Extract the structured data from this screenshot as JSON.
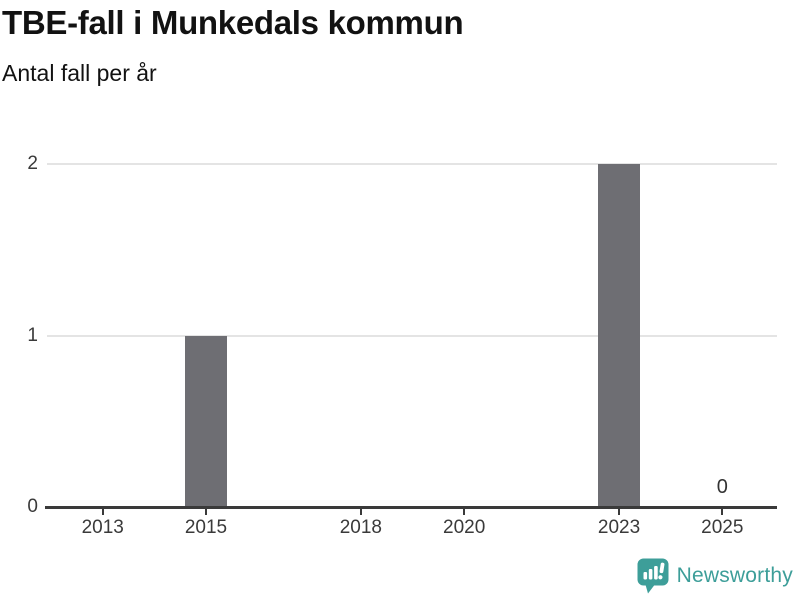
{
  "header": {
    "title": "TBE-fall i Munkedals kommun",
    "subtitle": "Antal fall per år"
  },
  "chart_data": {
    "type": "bar",
    "title": "TBE-fall i Munkedals kommun",
    "subtitle": "Antal fall per år",
    "xlim": [
      2011.92,
      2026.06
    ],
    "ylim": [
      0,
      2
    ],
    "grid": "horizontal",
    "y_gridlines": [
      1,
      2
    ],
    "y_ticks": [
      {
        "value": 0,
        "label": "0"
      },
      {
        "value": 1,
        "label": "1"
      },
      {
        "value": 2,
        "label": "2"
      }
    ],
    "x_ticks": [
      {
        "year": 2013,
        "label": "2013"
      },
      {
        "year": 2015,
        "label": "2015"
      },
      {
        "year": 2018,
        "label": "2018"
      },
      {
        "year": 2020,
        "label": "2020"
      },
      {
        "year": 2023,
        "label": "2023"
      },
      {
        "year": 2025,
        "label": "2025"
      }
    ],
    "bars": [
      {
        "year": 2015,
        "value": 1
      },
      {
        "year": 2023,
        "value": 2
      },
      {
        "year": 2025,
        "value": 0,
        "label": "0"
      }
    ],
    "bar_color": "#6e6e73",
    "legend_position": "none"
  },
  "branding": {
    "logo_text": "Newsworthy",
    "logo_icon": "newsworthy-speech-bubble-chart-icon"
  },
  "colors": {
    "background": "#ffffff",
    "bar": "#6e6e73",
    "gridline": "#e4e4e4",
    "axis": "#3a3a3a",
    "tick_label": "#3a3a3a",
    "title_text": "#121212",
    "accent": "#3d9e99"
  }
}
